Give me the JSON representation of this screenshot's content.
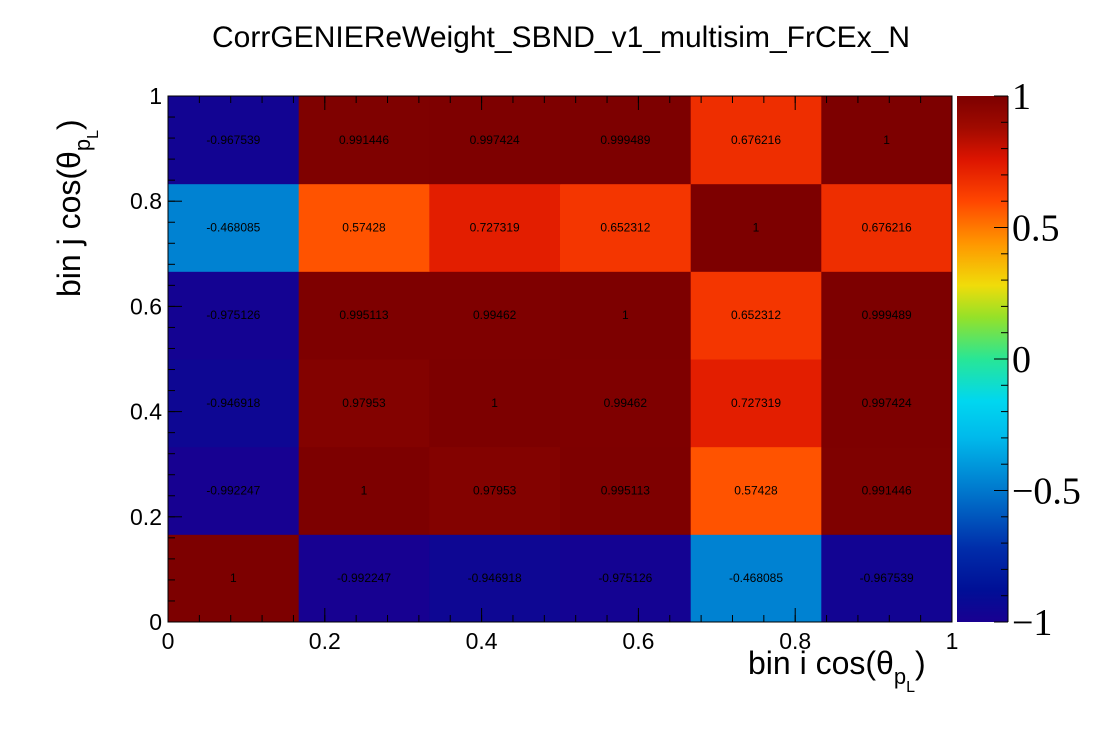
{
  "chart_data": {
    "type": "heatmap",
    "title": "CorrGENIEReWeight_SBND_v1_multisim_FrCEx_N",
    "xlabel": "bin i cos(θ",
    "xlabel_sub": "p",
    "xlabel_subsub": "L",
    "xlabel_close": ")",
    "ylabel": "bin j cos(θ",
    "ylabel_sub": "p",
    "ylabel_subsub": "L",
    "ylabel_close": ")",
    "xlim": [
      0,
      1
    ],
    "ylim": [
      0,
      1
    ],
    "zlim": [
      -1,
      1
    ],
    "x_bin_edges": [
      0,
      0.1667,
      0.3333,
      0.5,
      0.6667,
      0.8333,
      1
    ],
    "y_bin_edges": [
      0,
      0.1667,
      0.3333,
      0.5,
      0.6667,
      0.8333,
      1
    ],
    "x_ticks": [
      0,
      0.2,
      0.4,
      0.6,
      0.8,
      1
    ],
    "x_tick_labels": [
      "0",
      "0.2",
      "0.4",
      "0.6",
      "0.8",
      "1"
    ],
    "y_ticks": [
      0,
      0.2,
      0.4,
      0.6,
      0.8,
      1
    ],
    "y_tick_labels": [
      "0",
      "0.2",
      "0.4",
      "0.6",
      "0.8",
      "1"
    ],
    "z_ticks": [
      -1,
      -0.5,
      0,
      0.5,
      1
    ],
    "z_tick_labels": [
      "−1",
      "−0.5",
      "0",
      "0.5",
      "1"
    ],
    "palette": "rainbow (dark blue → cyan → green → yellow → red → dark red)",
    "legend": "colorbar-right",
    "grid": false,
    "rows_bottom_to_top": [
      [
        "1",
        "-0.992247",
        "-0.946918",
        "-0.975126",
        "-0.468085",
        "-0.967539"
      ],
      [
        "-0.992247",
        "1",
        "0.97953",
        "0.995113",
        "0.57428",
        "0.991446"
      ],
      [
        "-0.946918",
        "0.97953",
        "1",
        "0.99462",
        "0.727319",
        "0.997424"
      ],
      [
        "-0.975126",
        "0.995113",
        "0.99462",
        "1",
        "0.652312",
        "0.999489"
      ],
      [
        "-0.468085",
        "0.57428",
        "0.727319",
        "0.652312",
        "1",
        "0.676216"
      ],
      [
        "-0.967539",
        "0.991446",
        "0.997424",
        "0.999489",
        "0.676216",
        "1"
      ]
    ]
  }
}
